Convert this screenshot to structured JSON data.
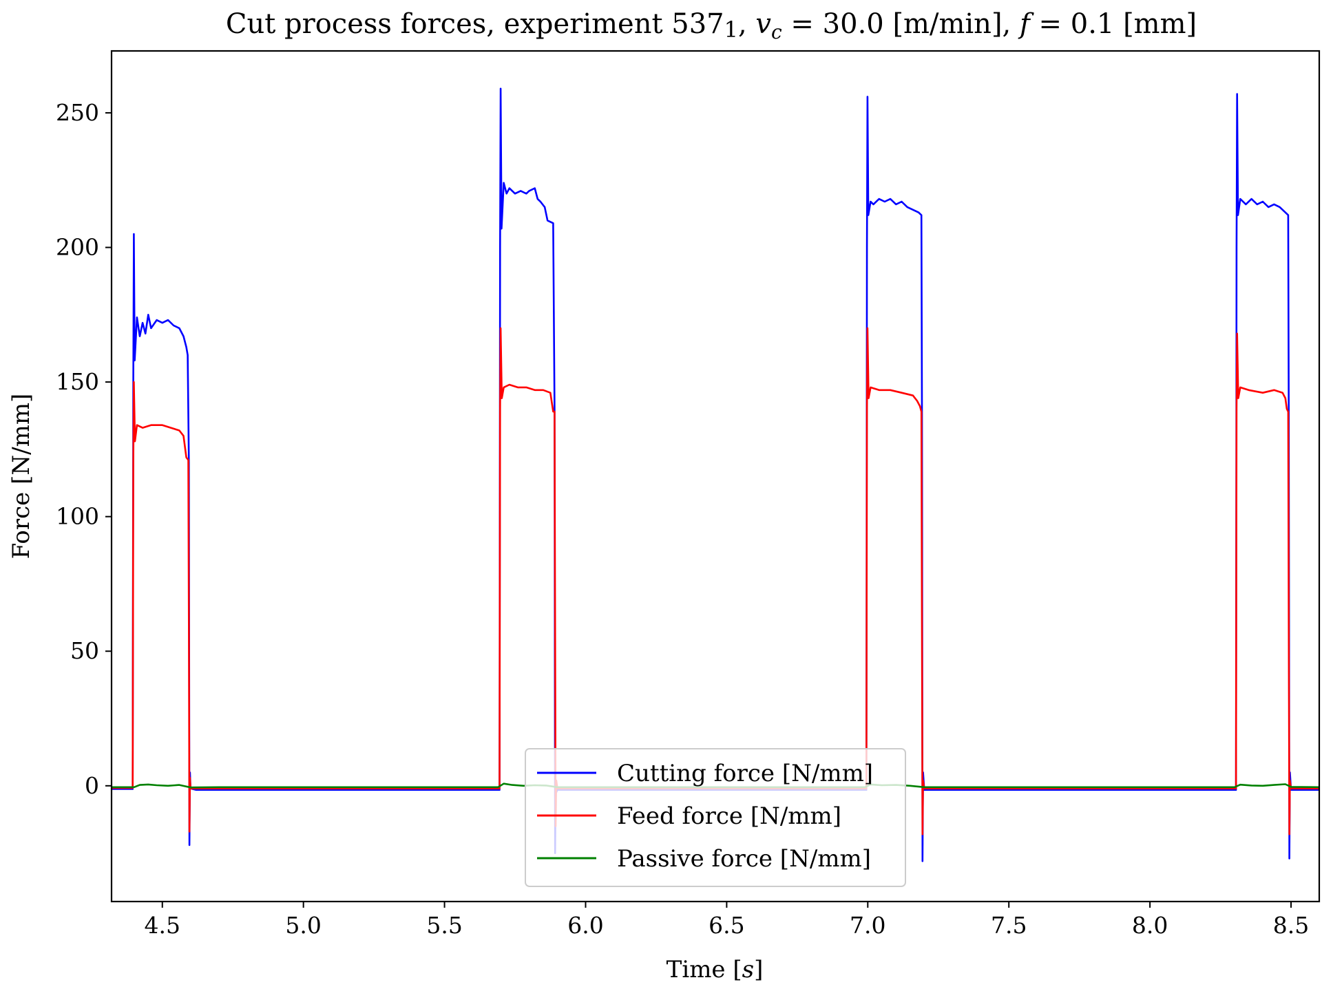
{
  "chart_data": {
    "type": "line",
    "title": "Cut process forces, experiment 537_1, v_c = 30.0 [m/min], f = 0.1 [mm]",
    "title_parts": {
      "lead": "Cut process forces, experiment 537",
      "sub": "1",
      "mid": ", ",
      "v": "v",
      "c": "c",
      "vc_eq": " = 30.0 [m/min], ",
      "f": "f",
      "f_eq": " = 0.1 [mm]"
    },
    "xlabel": "Time",
    "xlabel_unit": "s",
    "ylabel": "Force [N/mm]",
    "xlim": [
      4.32,
      8.6
    ],
    "ylim": [
      -43,
      273
    ],
    "xticks": [
      4.5,
      5.0,
      5.5,
      6.0,
      6.5,
      7.0,
      7.5,
      8.0,
      8.5
    ],
    "xtick_labels": [
      "4.5",
      "5.0",
      "5.5",
      "6.0",
      "6.5",
      "7.0",
      "7.5",
      "8.0",
      "8.5"
    ],
    "yticks": [
      0,
      50,
      100,
      150,
      200,
      250
    ],
    "ytick_labels": [
      "0",
      "50",
      "100",
      "150",
      "200",
      "250"
    ],
    "grid": false,
    "legend": {
      "placement": "lower-center"
    },
    "series": [
      {
        "name": "Cutting force [N/mm]",
        "color": "#0000ff",
        "points": [
          [
            4.32,
            -1.2
          ],
          [
            4.395,
            -1.2
          ],
          [
            4.397,
            150
          ],
          [
            4.399,
            205
          ],
          [
            4.402,
            158
          ],
          [
            4.41,
            174
          ],
          [
            4.42,
            167
          ],
          [
            4.43,
            172
          ],
          [
            4.44,
            168
          ],
          [
            4.45,
            175
          ],
          [
            4.46,
            170
          ],
          [
            4.48,
            173
          ],
          [
            4.5,
            172
          ],
          [
            4.52,
            173
          ],
          [
            4.54,
            171
          ],
          [
            4.56,
            170
          ],
          [
            4.575,
            167
          ],
          [
            4.585,
            163
          ],
          [
            4.59,
            160
          ],
          [
            4.594,
            120
          ],
          [
            4.596,
            -22
          ],
          [
            4.598,
            5
          ],
          [
            4.6,
            -1
          ],
          [
            4.62,
            -1.5
          ],
          [
            5.0,
            -1.5
          ],
          [
            5.5,
            -1.5
          ],
          [
            5.695,
            -1.5
          ],
          [
            5.697,
            200
          ],
          [
            5.699,
            259
          ],
          [
            5.702,
            207
          ],
          [
            5.71,
            224
          ],
          [
            5.72,
            220
          ],
          [
            5.73,
            222
          ],
          [
            5.75,
            220
          ],
          [
            5.77,
            221
          ],
          [
            5.79,
            220
          ],
          [
            5.8,
            221
          ],
          [
            5.82,
            222
          ],
          [
            5.83,
            218
          ],
          [
            5.84,
            217
          ],
          [
            5.855,
            215
          ],
          [
            5.865,
            210
          ],
          [
            5.885,
            209
          ],
          [
            5.89,
            140
          ],
          [
            5.892,
            -25
          ],
          [
            5.894,
            -3
          ],
          [
            5.9,
            -1.5
          ],
          [
            6.5,
            -1.5
          ],
          [
            6.995,
            -1.5
          ],
          [
            6.997,
            200
          ],
          [
            6.999,
            256
          ],
          [
            7.002,
            212
          ],
          [
            7.01,
            217
          ],
          [
            7.02,
            216
          ],
          [
            7.04,
            218
          ],
          [
            7.06,
            217
          ],
          [
            7.08,
            218
          ],
          [
            7.1,
            216
          ],
          [
            7.12,
            217
          ],
          [
            7.14,
            215
          ],
          [
            7.16,
            214
          ],
          [
            7.18,
            213
          ],
          [
            7.19,
            212
          ],
          [
            7.192,
            140
          ],
          [
            7.194,
            -28
          ],
          [
            7.196,
            5
          ],
          [
            7.2,
            -1.5
          ],
          [
            7.5,
            -1.5
          ],
          [
            8.0,
            -1.5
          ],
          [
            8.305,
            -1.5
          ],
          [
            8.307,
            200
          ],
          [
            8.309,
            257
          ],
          [
            8.312,
            212
          ],
          [
            8.32,
            218
          ],
          [
            8.34,
            216
          ],
          [
            8.36,
            218
          ],
          [
            8.38,
            216
          ],
          [
            8.4,
            217
          ],
          [
            8.42,
            215
          ],
          [
            8.44,
            216
          ],
          [
            8.46,
            215
          ],
          [
            8.48,
            213
          ],
          [
            8.49,
            212
          ],
          [
            8.492,
            140
          ],
          [
            8.494,
            -27
          ],
          [
            8.496,
            5
          ],
          [
            8.5,
            -1.5
          ],
          [
            8.6,
            -1.5
          ]
        ]
      },
      {
        "name": "Feed force [N/mm]",
        "color": "#ff0000",
        "points": [
          [
            4.32,
            -0.8
          ],
          [
            4.395,
            -0.8
          ],
          [
            4.397,
            120
          ],
          [
            4.399,
            150
          ],
          [
            4.403,
            128
          ],
          [
            4.41,
            134
          ],
          [
            4.43,
            133
          ],
          [
            4.46,
            134
          ],
          [
            4.5,
            134
          ],
          [
            4.53,
            133
          ],
          [
            4.56,
            132
          ],
          [
            4.575,
            130
          ],
          [
            4.585,
            122
          ],
          [
            4.592,
            121
          ],
          [
            4.594,
            60
          ],
          [
            4.596,
            -17
          ],
          [
            4.598,
            3
          ],
          [
            4.6,
            -1
          ],
          [
            4.62,
            -1
          ],
          [
            5.0,
            -1
          ],
          [
            5.695,
            -1
          ],
          [
            5.697,
            140
          ],
          [
            5.699,
            170
          ],
          [
            5.703,
            144
          ],
          [
            5.71,
            148
          ],
          [
            5.73,
            149
          ],
          [
            5.76,
            148
          ],
          [
            5.79,
            148
          ],
          [
            5.82,
            147
          ],
          [
            5.85,
            147
          ],
          [
            5.875,
            146
          ],
          [
            5.885,
            139
          ],
          [
            5.89,
            139
          ],
          [
            5.892,
            60
          ],
          [
            5.894,
            -15
          ],
          [
            5.896,
            2
          ],
          [
            5.9,
            -1
          ],
          [
            6.5,
            -1
          ],
          [
            6.995,
            -1
          ],
          [
            6.997,
            140
          ],
          [
            6.999,
            170
          ],
          [
            7.003,
            144
          ],
          [
            7.01,
            148
          ],
          [
            7.04,
            147
          ],
          [
            7.08,
            147
          ],
          [
            7.12,
            146
          ],
          [
            7.16,
            145
          ],
          [
            7.175,
            143
          ],
          [
            7.185,
            141
          ],
          [
            7.19,
            139
          ],
          [
            7.192,
            60
          ],
          [
            7.194,
            -18
          ],
          [
            7.196,
            2
          ],
          [
            7.2,
            -1
          ],
          [
            7.5,
            -1
          ],
          [
            8.305,
            -1
          ],
          [
            8.307,
            140
          ],
          [
            8.309,
            168
          ],
          [
            8.313,
            144
          ],
          [
            8.32,
            148
          ],
          [
            8.35,
            147
          ],
          [
            8.4,
            146
          ],
          [
            8.44,
            147
          ],
          [
            8.47,
            146
          ],
          [
            8.48,
            144
          ],
          [
            8.485,
            140
          ],
          [
            8.49,
            139
          ],
          [
            8.492,
            60
          ],
          [
            8.494,
            -18
          ],
          [
            8.496,
            2
          ],
          [
            8.5,
            -1
          ],
          [
            8.6,
            -1
          ]
        ]
      },
      {
        "name": "Passive force [N/mm]",
        "color": "#008000",
        "points": [
          [
            4.32,
            -0.5
          ],
          [
            4.4,
            -0.5
          ],
          [
            4.42,
            0.3
          ],
          [
            4.45,
            0.5
          ],
          [
            4.48,
            0.2
          ],
          [
            4.52,
            0
          ],
          [
            4.56,
            0.3
          ],
          [
            4.6,
            -0.6
          ],
          [
            4.7,
            -0.5
          ],
          [
            5.0,
            -0.5
          ],
          [
            5.4,
            -0.5
          ],
          [
            5.69,
            -0.5
          ],
          [
            5.71,
            0.8
          ],
          [
            5.74,
            0.3
          ],
          [
            5.78,
            0
          ],
          [
            5.82,
            0.2
          ],
          [
            5.86,
            0.1
          ],
          [
            5.9,
            -0.5
          ],
          [
            6.2,
            -0.5
          ],
          [
            6.99,
            -0.5
          ],
          [
            7.01,
            0.5
          ],
          [
            7.05,
            0.2
          ],
          [
            7.1,
            0.3
          ],
          [
            7.15,
            0
          ],
          [
            7.2,
            -0.5
          ],
          [
            7.5,
            -0.5
          ],
          [
            8.0,
            -0.5
          ],
          [
            8.3,
            -0.5
          ],
          [
            8.32,
            0.4
          ],
          [
            8.36,
            0.1
          ],
          [
            8.4,
            0
          ],
          [
            8.44,
            0.3
          ],
          [
            8.48,
            0.6
          ],
          [
            8.5,
            -0.4
          ],
          [
            8.6,
            -0.5
          ]
        ]
      }
    ]
  }
}
